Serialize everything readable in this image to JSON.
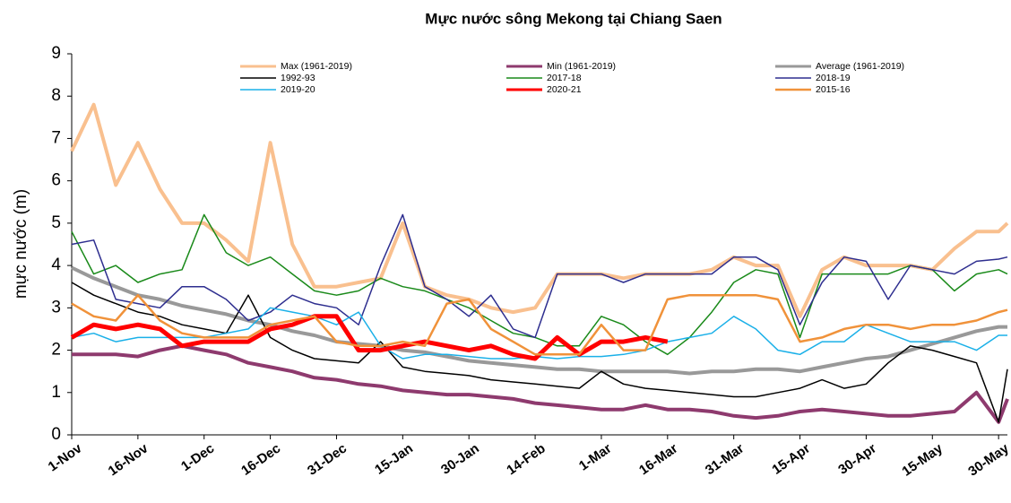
{
  "chart_data": {
    "type": "line",
    "title": "Mực nước sông Mekong tại Chiang Saen",
    "y_label": "mực nước (m)",
    "x": [
      0,
      5,
      10,
      15,
      20,
      25,
      30,
      35,
      40,
      45,
      50,
      55,
      60,
      65,
      70,
      75,
      80,
      85,
      90,
      95,
      100,
      105,
      110,
      115,
      120,
      125,
      130,
      135,
      140,
      145,
      150,
      155,
      160,
      165,
      170,
      175,
      180,
      185,
      190,
      195,
      200,
      205,
      210,
      212
    ],
    "xlim": [
      0,
      212
    ],
    "xticks": [
      {
        "value": 0,
        "label": "1-Nov"
      },
      {
        "value": 15,
        "label": "16-Nov"
      },
      {
        "value": 30,
        "label": "1-Dec"
      },
      {
        "value": 45,
        "label": "16-Dec"
      },
      {
        "value": 60,
        "label": "31-Dec"
      },
      {
        "value": 75,
        "label": "15-Jan"
      },
      {
        "value": 90,
        "label": "30-Jan"
      },
      {
        "value": 105,
        "label": "14-Feb"
      },
      {
        "value": 120,
        "label": "1-Mar"
      },
      {
        "value": 135,
        "label": "16-Mar"
      },
      {
        "value": 150,
        "label": "31-Mar"
      },
      {
        "value": 165,
        "label": "15-Apr"
      },
      {
        "value": 180,
        "label": "30-Apr"
      },
      {
        "value": 195,
        "label": "15-May"
      },
      {
        "value": 210,
        "label": "30-May"
      }
    ],
    "ylim": [
      0,
      9
    ],
    "yticks": [
      0,
      1,
      2,
      3,
      4,
      5,
      6,
      7,
      8,
      9
    ],
    "grid": false,
    "series": [
      {
        "name": "Max (1961-2019)",
        "color": "#f9c08f",
        "width": 4,
        "values": [
          6.7,
          7.8,
          5.9,
          6.9,
          5.8,
          5.0,
          5.0,
          4.6,
          4.1,
          6.9,
          4.5,
          3.5,
          3.5,
          3.6,
          3.7,
          5.0,
          3.5,
          3.3,
          3.2,
          3.0,
          2.9,
          3.0,
          3.8,
          3.8,
          3.8,
          3.7,
          3.8,
          3.8,
          3.8,
          3.9,
          4.2,
          4.0,
          4.0,
          2.8,
          3.9,
          4.2,
          4.0,
          4.0,
          4.0,
          3.9,
          4.4,
          4.8,
          4.8,
          5.0
        ]
      },
      {
        "name": "Min (1961-2019)",
        "color": "#8e3a6e",
        "width": 4,
        "values": [
          1.9,
          1.9,
          1.9,
          1.85,
          2.0,
          2.1,
          2.0,
          1.9,
          1.7,
          1.6,
          1.5,
          1.35,
          1.3,
          1.2,
          1.15,
          1.05,
          1.0,
          0.95,
          0.95,
          0.9,
          0.85,
          0.75,
          0.7,
          0.65,
          0.6,
          0.6,
          0.7,
          0.6,
          0.6,
          0.55,
          0.45,
          0.4,
          0.45,
          0.55,
          0.6,
          0.55,
          0.5,
          0.45,
          0.45,
          0.5,
          0.55,
          1.0,
          0.3,
          0.85
        ]
      },
      {
        "name": "Average (1961-2019)",
        "color": "#999999",
        "width": 4,
        "values": [
          3.95,
          3.7,
          3.5,
          3.3,
          3.2,
          3.05,
          2.95,
          2.85,
          2.7,
          2.6,
          2.45,
          2.35,
          2.2,
          2.15,
          2.1,
          2.0,
          1.95,
          1.85,
          1.75,
          1.7,
          1.65,
          1.6,
          1.55,
          1.55,
          1.5,
          1.5,
          1.5,
          1.5,
          1.45,
          1.5,
          1.5,
          1.55,
          1.55,
          1.5,
          1.6,
          1.7,
          1.8,
          1.85,
          2.0,
          2.15,
          2.3,
          2.45,
          2.55,
          2.55
        ]
      },
      {
        "name": "1992-93",
        "color": "#000000",
        "width": 1.5,
        "values": [
          3.6,
          3.3,
          3.1,
          2.9,
          2.8,
          2.6,
          2.5,
          2.4,
          3.3,
          2.3,
          2.0,
          1.8,
          1.75,
          1.7,
          2.2,
          1.6,
          1.5,
          1.45,
          1.4,
          1.3,
          1.25,
          1.2,
          1.15,
          1.1,
          1.5,
          1.2,
          1.1,
          1.05,
          1.0,
          0.95,
          0.9,
          0.9,
          1.0,
          1.1,
          1.3,
          1.1,
          1.2,
          1.7,
          2.1,
          2.0,
          1.85,
          1.7,
          0.3,
          1.55
        ]
      },
      {
        "name": "2017-18",
        "color": "#1a8a1a",
        "width": 1.5,
        "values": [
          4.8,
          3.8,
          4.0,
          3.6,
          3.8,
          3.9,
          5.2,
          4.3,
          4.0,
          4.2,
          3.8,
          3.4,
          3.3,
          3.4,
          3.7,
          3.5,
          3.4,
          3.2,
          3.0,
          2.7,
          2.4,
          2.3,
          2.1,
          2.1,
          2.8,
          2.6,
          2.2,
          1.9,
          2.3,
          2.9,
          3.6,
          3.9,
          3.8,
          2.3,
          3.8,
          3.8,
          3.8,
          3.8,
          4.0,
          3.9,
          3.4,
          3.8,
          3.9,
          3.8
        ]
      },
      {
        "name": "2018-19",
        "color": "#2e2e8f",
        "width": 1.5,
        "values": [
          4.5,
          4.6,
          3.2,
          3.1,
          3.0,
          3.5,
          3.5,
          3.2,
          2.7,
          2.9,
          3.3,
          3.1,
          3.0,
          2.6,
          4.0,
          5.2,
          3.5,
          3.2,
          2.8,
          3.3,
          2.5,
          2.3,
          3.8,
          3.8,
          3.8,
          3.6,
          3.8,
          3.8,
          3.8,
          3.8,
          4.2,
          4.2,
          3.9,
          2.6,
          3.6,
          4.2,
          4.1,
          3.2,
          4.0,
          3.9,
          3.8,
          4.1,
          4.15,
          4.2
        ]
      },
      {
        "name": "2019-20",
        "color": "#1ab0e8",
        "width": 1.5,
        "values": [
          2.3,
          2.4,
          2.2,
          2.3,
          2.3,
          2.3,
          2.3,
          2.4,
          2.5,
          3.0,
          2.9,
          2.8,
          2.6,
          2.9,
          2.1,
          1.8,
          1.9,
          1.9,
          1.85,
          1.8,
          1.8,
          1.85,
          1.8,
          1.85,
          1.85,
          1.9,
          2.0,
          2.2,
          2.3,
          2.4,
          2.8,
          2.5,
          2.0,
          1.9,
          2.2,
          2.2,
          2.6,
          2.4,
          2.2,
          2.2,
          2.2,
          2.0,
          2.35,
          2.35
        ]
      },
      {
        "name": "2020-21",
        "color": "#ff0000",
        "width": 5,
        "values": [
          2.3,
          2.6,
          2.5,
          2.6,
          2.5,
          2.1,
          2.2,
          2.2,
          2.2,
          2.5,
          2.6,
          2.8,
          2.8,
          2.0,
          2.0,
          2.1,
          2.2,
          2.1,
          2.0,
          2.1,
          1.9,
          1.8,
          2.3,
          1.9,
          2.2,
          2.2,
          2.3,
          2.2,
          null,
          null,
          null,
          null,
          null,
          null,
          null,
          null,
          null,
          null,
          null,
          null,
          null,
          null,
          null,
          null
        ]
      },
      {
        "name": "2015-16",
        "color": "#f0923a",
        "width": 2.5,
        "values": [
          3.1,
          2.8,
          2.7,
          3.3,
          2.7,
          2.4,
          2.3,
          2.3,
          2.3,
          2.6,
          2.7,
          2.8,
          2.2,
          2.1,
          2.1,
          2.2,
          2.1,
          3.1,
          3.2,
          2.5,
          2.2,
          1.9,
          1.9,
          1.9,
          2.6,
          2.0,
          2.0,
          3.2,
          3.3,
          3.3,
          3.3,
          3.3,
          3.2,
          2.2,
          2.3,
          2.5,
          2.6,
          2.6,
          2.5,
          2.6,
          2.6,
          2.7,
          2.9,
          2.95
        ]
      }
    ]
  }
}
